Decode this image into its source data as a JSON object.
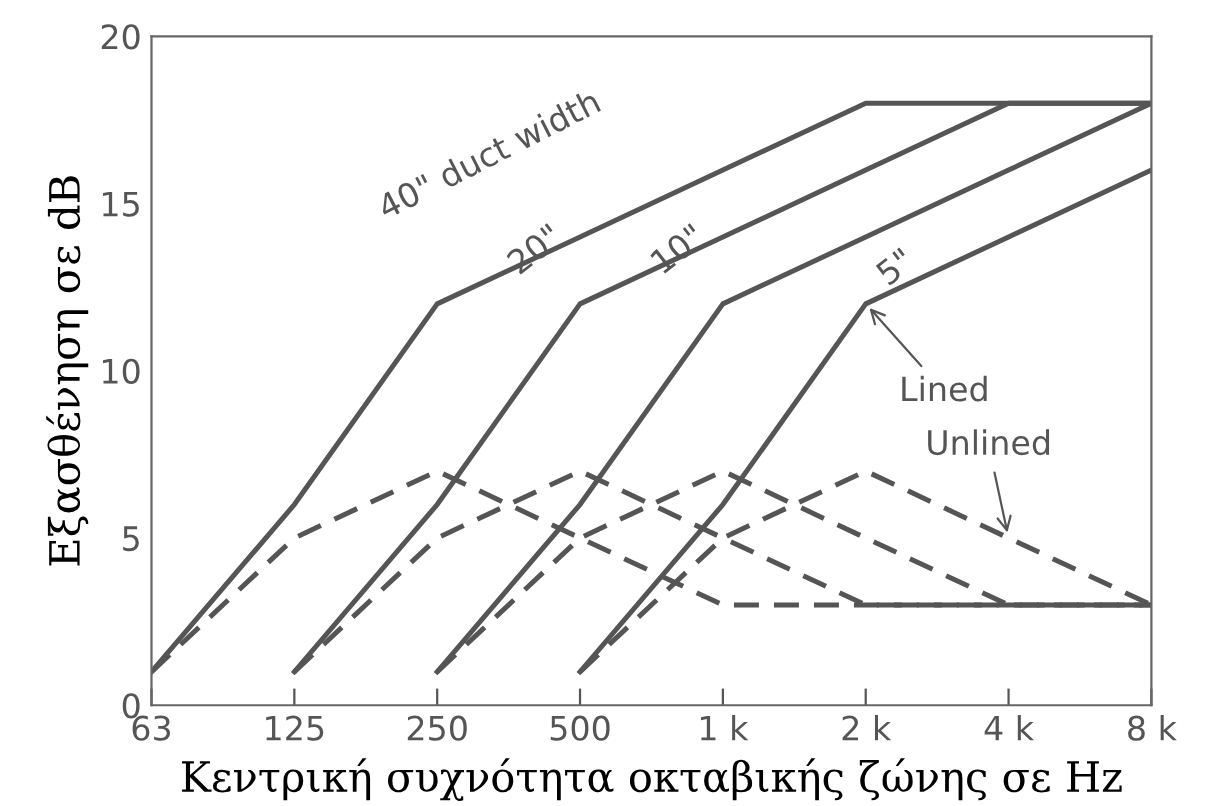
{
  "chart_data": {
    "type": "line",
    "xlabel": "Κεντρική συχνότητα οκταβικής ζώνης σε Hz",
    "ylabel": "Εξασθένηση σε dB",
    "categories": [
      "63",
      "125",
      "250",
      "500",
      "1 k",
      "2 k",
      "4 k",
      "8 k"
    ],
    "ylim": [
      0,
      20
    ],
    "yticks": [
      0,
      5,
      10,
      15,
      20
    ],
    "grid": false,
    "marker": "none",
    "series": [
      {
        "color": "#555555",
        "line_style": "solid",
        "values": [
          1,
          6,
          12,
          14,
          16,
          18,
          18,
          18
        ]
      },
      {
        "color": "#555555",
        "line_style": "solid",
        "values": [
          null,
          1,
          6,
          12,
          14,
          16,
          18,
          18
        ]
      },
      {
        "color": "#555555",
        "line_style": "solid",
        "values": [
          null,
          null,
          1,
          6,
          12,
          14,
          16,
          18
        ]
      },
      {
        "color": "#555555",
        "line_style": "solid",
        "values": [
          null,
          null,
          null,
          1,
          6,
          12,
          14,
          16
        ]
      },
      {
        "color": "#555555",
        "line_style": "dashed",
        "values": [
          1,
          5,
          7,
          5,
          3,
          3,
          3,
          3
        ]
      },
      {
        "color": "#555555",
        "line_style": "dashed",
        "values": [
          null,
          1,
          5,
          7,
          5,
          3,
          3,
          3
        ]
      },
      {
        "color": "#555555",
        "line_style": "dashed",
        "values": [
          null,
          null,
          1,
          5,
          7,
          5,
          3,
          3
        ]
      },
      {
        "color": "#555555",
        "line_style": "dashed",
        "values": [
          null,
          null,
          null,
          1,
          5,
          7,
          5,
          3
        ]
      }
    ],
    "annotations": [
      {
        "text": "40\" duct width",
        "x": "500",
        "y": 14
      },
      {
        "text": "20\"",
        "x": "500",
        "y": 12
      },
      {
        "text": "10\"",
        "x": "1 k",
        "y": 12
      },
      {
        "text": "5\"",
        "x": "2 k",
        "y": 12
      },
      {
        "text": "Lined",
        "x": "2 k",
        "y": 12
      },
      {
        "text": "Unlined",
        "x": "4 k",
        "y": 5
      }
    ]
  }
}
